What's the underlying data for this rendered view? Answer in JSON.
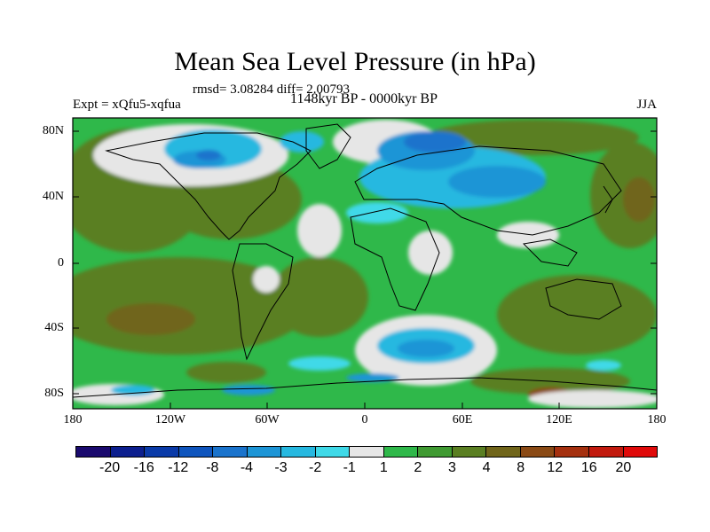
{
  "title": "Mean Sea Level Pressure (in hPa)",
  "stats_line": "rmsd= 3.08284 diff= 2.00793",
  "experiment_label": "Expt = xQfu5-xqfua",
  "period_label": "1148kyr BP - 0000kyr BP",
  "season_label": "JJA",
  "lat_ticks": [
    "80N",
    "40N",
    "0",
    "40S",
    "80S"
  ],
  "lon_ticks": [
    "180",
    "120W",
    "60W",
    "0",
    "60E",
    "120E",
    "180"
  ],
  "colorbar": {
    "labels": [
      "-20",
      "-16",
      "-12",
      "-8",
      "-4",
      "-3",
      "-2",
      "-1",
      "1",
      "2",
      "3",
      "4",
      "8",
      "12",
      "16",
      "20"
    ],
    "colors": [
      "#1a0a6e",
      "#0c1f8e",
      "#0a3aa8",
      "#0f55bd",
      "#1a73cc",
      "#1d95d6",
      "#26b8e0",
      "#3fd9e8",
      "#e6e6e6",
      "#2fb84a",
      "#3f9a32",
      "#5a7f22",
      "#70651a",
      "#8a4a15",
      "#a5300f",
      "#c21a0e",
      "#e00a0a"
    ]
  },
  "field_colors": {
    "land_outline": "#000000",
    "ocean_base": "#2fb84a"
  }
}
